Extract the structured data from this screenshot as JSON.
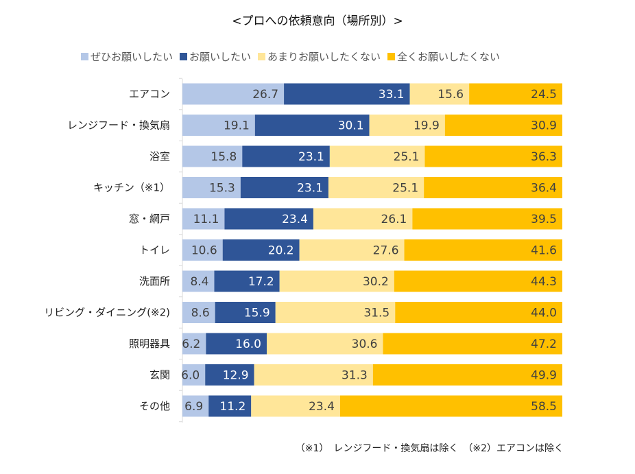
{
  "chart_data": {
    "type": "bar",
    "orientation": "horizontal",
    "stacked": "percent",
    "title": "<プロへの依頼意向（場所別）>",
    "categories": [
      "エアコン",
      "レンジフード・換気扇",
      "浴室",
      "キッチン（※1）",
      "窓・網戸",
      "トイレ",
      "洗面所",
      "リビング・ダイニング(※2)",
      "照明器具",
      "玄関",
      "その他"
    ],
    "series": [
      {
        "name": "ぜひお願いしたい",
        "color": "#B4C7E7",
        "label_color": "#404040",
        "values": [
          26.7,
          19.1,
          15.8,
          15.3,
          11.1,
          10.6,
          8.4,
          8.6,
          6.2,
          6.0,
          6.9
        ]
      },
      {
        "name": "お願いしたい",
        "color": "#2F5597",
        "label_color": "#FFFFFF",
        "values": [
          33.1,
          30.1,
          23.1,
          23.1,
          23.4,
          20.2,
          17.2,
          15.9,
          16.0,
          12.9,
          11.2
        ]
      },
      {
        "name": "あまりお願いしたくない",
        "color": "#FFE699",
        "label_color": "#404040",
        "values": [
          15.6,
          19.9,
          25.1,
          25.1,
          26.1,
          27.6,
          30.2,
          31.5,
          30.6,
          31.3,
          23.4
        ]
      },
      {
        "name": "全くお願いしたくない",
        "color": "#FFC000",
        "label_color": "#404040",
        "values": [
          24.5,
          30.9,
          36.3,
          36.4,
          39.5,
          41.6,
          44.3,
          44.0,
          47.2,
          49.9,
          58.5
        ]
      }
    ],
    "legend_position": "top",
    "grid": false,
    "xlabel": "",
    "ylabel": ""
  },
  "footnote": "（※1）　レンジフード・換気扇は除く　（※2）エアコンは除く"
}
